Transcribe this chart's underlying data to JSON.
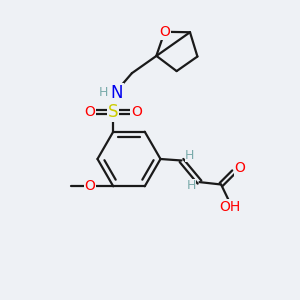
{
  "bg_color": "#eef1f5",
  "bond_color": "#1a1a1a",
  "atom_colors": {
    "O": "#ff0000",
    "N": "#0000ee",
    "S": "#cccc00",
    "C": "#1a1a1a",
    "H": "#7aabab"
  },
  "lw": 1.6,
  "fs": 10,
  "fs_small": 9
}
